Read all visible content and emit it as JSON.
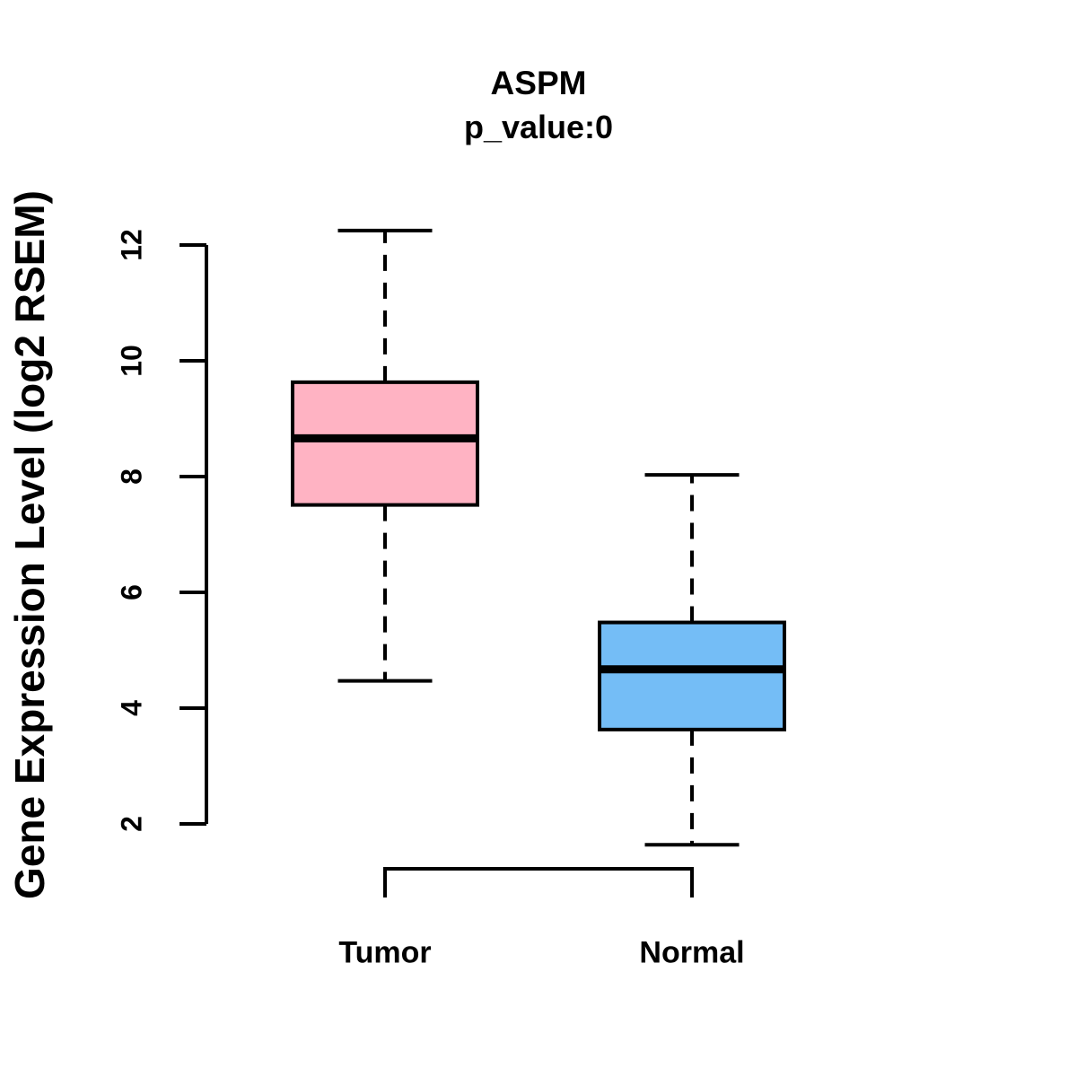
{
  "chart_data": {
    "type": "boxplot",
    "title": "ASPM",
    "subtitle": "p_value:0",
    "ylabel": "Gene Expression Level (log2 RSEM)",
    "xlabel": "",
    "categories": [
      "Tumor",
      "Normal"
    ],
    "yticks": [
      2,
      4,
      6,
      8,
      10,
      12
    ],
    "ylim": [
      1.4,
      12.5
    ],
    "grid": false,
    "legend": "none",
    "series": [
      {
        "name": "Tumor",
        "fill_color": "#FFB3C3",
        "whisker_low": 4.47,
        "q1": 7.51,
        "median": 8.66,
        "q3": 9.63,
        "whisker_high": 12.25
      },
      {
        "name": "Normal",
        "fill_color": "#74BDF6",
        "whisker_low": 1.64,
        "q1": 3.63,
        "median": 4.67,
        "q3": 5.48,
        "whisker_high": 8.03
      }
    ],
    "colors": {
      "line": "#000000",
      "text": "#000000",
      "background": "#FFFFFF"
    }
  }
}
